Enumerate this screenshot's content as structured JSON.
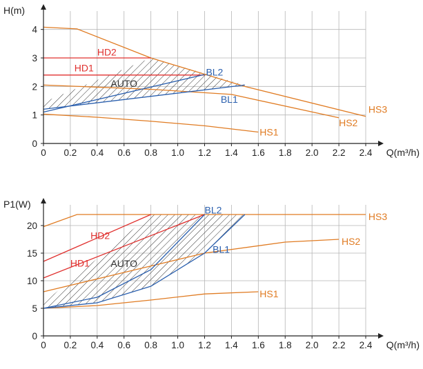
{
  "chart_data": [
    {
      "type": "line",
      "ylabel": "H(m)",
      "xlabel": "Q(m³/h)",
      "xlim": [
        0,
        2.4
      ],
      "ylim": [
        0,
        4.5
      ],
      "x_ticks": [
        "0",
        "0.2",
        "0.4",
        "0.6",
        "0.8",
        "1.0",
        "1.2",
        "1.4",
        "1.6",
        "1.8",
        "2.0",
        "2.2",
        "2.4"
      ],
      "y_ticks": [
        "0",
        "1",
        "2",
        "3",
        "4"
      ],
      "grid": true,
      "colors": {
        "HS": "#e07b22",
        "HD": "#e0312f",
        "BL": "#2a5fae",
        "AUTO": "#333333"
      },
      "series": [
        {
          "name": "HS1",
          "color": "#e07b22",
          "points": [
            [
              0,
              1.03
            ],
            [
              0.4,
              0.92
            ],
            [
              0.8,
              0.78
            ],
            [
              1.2,
              0.62
            ],
            [
              1.6,
              0.4
            ]
          ],
          "label_at": [
            1.61,
            0.4
          ]
        },
        {
          "name": "HS2",
          "color": "#e07b22",
          "points": [
            [
              0,
              2.05
            ],
            [
              0.8,
              1.9
            ],
            [
              1.4,
              1.72
            ],
            [
              2.2,
              0.9
            ]
          ],
          "label_at": [
            2.2,
            0.72
          ]
        },
        {
          "name": "HS3",
          "color": "#e07b22",
          "points": [
            [
              0,
              4.08
            ],
            [
              0.25,
              4.02
            ],
            [
              0.8,
              3.0
            ],
            [
              1.5,
              2.0
            ],
            [
              2.4,
              0.95
            ]
          ],
          "label_at": [
            2.42,
            1.2
          ]
        },
        {
          "name": "HD1",
          "color": "#e0312f",
          "points": [
            [
              0,
              2.4
            ],
            [
              1.2,
              2.4
            ]
          ],
          "label_at": [
            0.23,
            2.65
          ]
        },
        {
          "name": "HD2",
          "color": "#e0312f",
          "points": [
            [
              0,
              3.0
            ],
            [
              0.8,
              3.0
            ]
          ],
          "label_at": [
            0.4,
            3.2
          ]
        },
        {
          "name": "BL1",
          "color": "#2a5fae",
          "points": [
            [
              0,
              1.2
            ],
            [
              1.5,
              2.05
            ]
          ],
          "label_at": [
            1.32,
            1.55
          ]
        },
        {
          "name": "BL2",
          "color": "#2a5fae",
          "points": [
            [
              0,
              1.1
            ],
            [
              1.2,
              2.42
            ]
          ],
          "label_at": [
            1.21,
            2.5
          ]
        }
      ],
      "auto_region": {
        "label": "AUTO",
        "label_at": [
          0.6,
          2.1
        ],
        "polygon": [
          [
            0,
            1.45
          ],
          [
            0.8,
            3.0
          ],
          [
            1.5,
            2.05
          ],
          [
            0,
            1.2
          ]
        ]
      }
    },
    {
      "type": "line",
      "ylabel": "P1(W)",
      "xlabel": "Q(m³/h)",
      "xlim": [
        0,
        2.4
      ],
      "ylim": [
        0,
        23
      ],
      "x_ticks": [
        "0",
        "0.2",
        "0.4",
        "0.6",
        "0.8",
        "1.0",
        "1.2",
        "1.4",
        "1.6",
        "1.8",
        "2.0",
        "2.2",
        "2.4"
      ],
      "y_ticks": [
        "0",
        "5",
        "10",
        "15",
        "20"
      ],
      "grid": true,
      "colors": {
        "HS": "#e07b22",
        "HD": "#e0312f",
        "BL": "#2a5fae",
        "AUTO": "#333333"
      },
      "series": [
        {
          "name": "HS1",
          "color": "#e07b22",
          "points": [
            [
              0,
              5.0
            ],
            [
              0.4,
              5.5
            ],
            [
              0.8,
              6.5
            ],
            [
              1.2,
              7.6
            ],
            [
              1.6,
              8.0
            ]
          ],
          "label_at": [
            1.61,
            7.6
          ]
        },
        {
          "name": "HS2",
          "color": "#e07b22",
          "points": [
            [
              0,
              8.0
            ],
            [
              0.6,
              11.5
            ],
            [
              1.2,
              15.0
            ],
            [
              1.8,
              17.0
            ],
            [
              2.2,
              17.5
            ]
          ],
          "label_at": [
            2.22,
            17.1
          ]
        },
        {
          "name": "HS3",
          "color": "#e07b22",
          "points": [
            [
              0,
              19.8
            ],
            [
              0.25,
              22.0
            ],
            [
              2.4,
              22.0
            ]
          ],
          "label_at": [
            2.42,
            21.6
          ]
        },
        {
          "name": "HD1",
          "color": "#e0312f",
          "points": [
            [
              0,
              10.5
            ],
            [
              1.2,
              22.0
            ]
          ],
          "label_at": [
            0.2,
            13.2
          ]
        },
        {
          "name": "HD2",
          "color": "#e0312f",
          "points": [
            [
              0,
              13.5
            ],
            [
              0.8,
              22.0
            ]
          ],
          "label_at": [
            0.35,
            18.2
          ]
        },
        {
          "name": "BL1",
          "color": "#2a5fae",
          "points": [
            [
              0,
              5.0
            ],
            [
              0.4,
              6.0
            ],
            [
              0.8,
              9.0
            ],
            [
              1.2,
              15.0
            ],
            [
              1.5,
              22.0
            ]
          ],
          "label_at": [
            1.26,
            15.7
          ]
        },
        {
          "name": "BL2",
          "color": "#2a5fae",
          "points": [
            [
              0,
              5.0
            ],
            [
              0.4,
              7.0
            ],
            [
              0.8,
              12.0
            ],
            [
              1.2,
              22.0
            ]
          ],
          "label_at": [
            1.2,
            22.8
          ]
        }
      ],
      "auto_region": {
        "label": "AUTO",
        "label_at": [
          0.6,
          13.1
        ],
        "polygon": [
          [
            0,
            6.0
          ],
          [
            0.8,
            22.0
          ],
          [
            1.5,
            22.0
          ],
          [
            1.2,
            15.0
          ],
          [
            0.8,
            9.0
          ],
          [
            0.4,
            6.0
          ],
          [
            0,
            5.0
          ]
        ]
      }
    }
  ]
}
